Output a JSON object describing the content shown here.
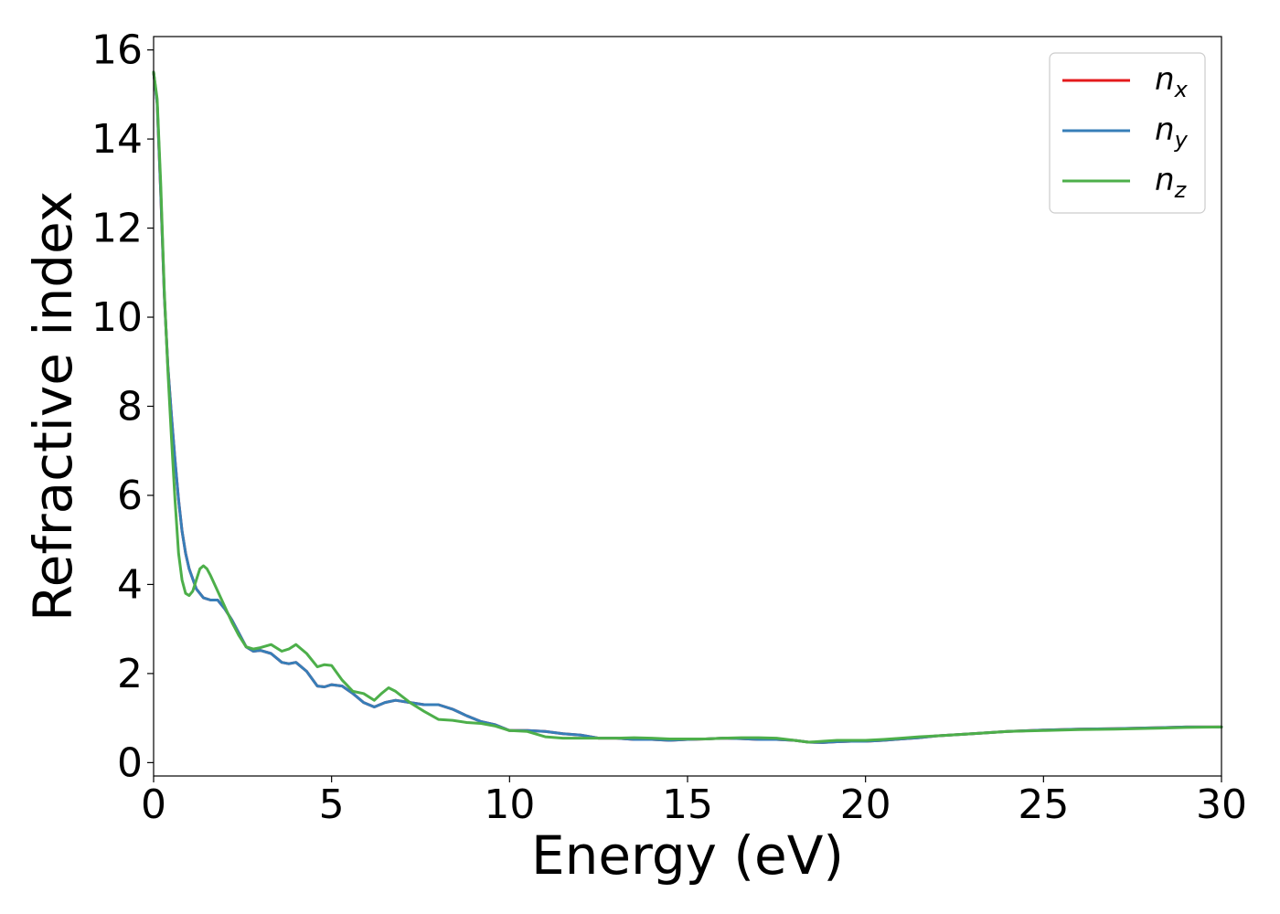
{
  "chart_data": {
    "type": "line",
    "title": "",
    "xlabel": "Energy (eV)",
    "ylabel": "Refractive index",
    "xlim": [
      0,
      30
    ],
    "ylim": [
      -0.3,
      16.3
    ],
    "x_ticks": [
      0,
      5,
      10,
      15,
      20,
      25,
      30
    ],
    "y_ticks": [
      0,
      2,
      4,
      6,
      8,
      10,
      12,
      14,
      16
    ],
    "grid": false,
    "legend": "top-right",
    "series": [
      {
        "name": "n",
        "subscript": "x",
        "color": "#e41a1c",
        "x": [
          0,
          0.1,
          0.2,
          0.3,
          0.4,
          0.5,
          0.6,
          0.7,
          0.8,
          0.9,
          1.0,
          1.2,
          1.4,
          1.6,
          1.8,
          2.0,
          2.2,
          2.4,
          2.6,
          2.8,
          3.0,
          3.3,
          3.6,
          3.8,
          4.0,
          4.3,
          4.6,
          4.8,
          5.0,
          5.3,
          5.6,
          5.9,
          6.2,
          6.5,
          6.8,
          7.2,
          7.6,
          8.0,
          8.4,
          8.8,
          9.2,
          9.6,
          10.0,
          10.5,
          11.0,
          11.5,
          12.0,
          12.5,
          13.0,
          13.5,
          14.0,
          14.5,
          15.0,
          15.5,
          16.0,
          16.5,
          17.0,
          17.5,
          18.0,
          18.4,
          18.8,
          19.2,
          19.6,
          20.0,
          20.5,
          21.0,
          21.5,
          22.0,
          23.0,
          24.0,
          25.0,
          26.0,
          27.0,
          28.0,
          29.0,
          30.0
        ],
        "y": [
          15.5,
          14.8,
          12.8,
          10.5,
          8.9,
          7.8,
          6.8,
          5.9,
          5.2,
          4.7,
          4.35,
          3.9,
          3.7,
          3.65,
          3.65,
          3.45,
          3.2,
          2.9,
          2.6,
          2.5,
          2.52,
          2.45,
          2.25,
          2.22,
          2.25,
          2.05,
          1.72,
          1.7,
          1.75,
          1.72,
          1.55,
          1.35,
          1.25,
          1.35,
          1.4,
          1.35,
          1.3,
          1.3,
          1.2,
          1.05,
          0.92,
          0.85,
          0.72,
          0.72,
          0.7,
          0.65,
          0.62,
          0.55,
          0.55,
          0.52,
          0.52,
          0.5,
          0.52,
          0.53,
          0.55,
          0.54,
          0.52,
          0.52,
          0.5,
          0.46,
          0.45,
          0.47,
          0.48,
          0.48,
          0.5,
          0.53,
          0.56,
          0.6,
          0.65,
          0.7,
          0.73,
          0.75,
          0.76,
          0.78,
          0.8,
          0.8
        ]
      },
      {
        "name": "n",
        "subscript": "y",
        "color": "#377eb8",
        "x": [
          0,
          0.1,
          0.2,
          0.3,
          0.4,
          0.5,
          0.6,
          0.7,
          0.8,
          0.9,
          1.0,
          1.2,
          1.4,
          1.6,
          1.8,
          2.0,
          2.2,
          2.4,
          2.6,
          2.8,
          3.0,
          3.3,
          3.6,
          3.8,
          4.0,
          4.3,
          4.6,
          4.8,
          5.0,
          5.3,
          5.6,
          5.9,
          6.2,
          6.5,
          6.8,
          7.2,
          7.6,
          8.0,
          8.4,
          8.8,
          9.2,
          9.6,
          10.0,
          10.5,
          11.0,
          11.5,
          12.0,
          12.5,
          13.0,
          13.5,
          14.0,
          14.5,
          15.0,
          15.5,
          16.0,
          16.5,
          17.0,
          17.5,
          18.0,
          18.4,
          18.8,
          19.2,
          19.6,
          20.0,
          20.5,
          21.0,
          21.5,
          22.0,
          23.0,
          24.0,
          25.0,
          26.0,
          27.0,
          28.0,
          29.0,
          30.0
        ],
        "y": [
          15.5,
          14.8,
          12.8,
          10.5,
          8.9,
          7.8,
          6.8,
          5.9,
          5.2,
          4.7,
          4.35,
          3.9,
          3.7,
          3.65,
          3.65,
          3.45,
          3.2,
          2.9,
          2.6,
          2.5,
          2.52,
          2.45,
          2.25,
          2.22,
          2.25,
          2.05,
          1.72,
          1.7,
          1.75,
          1.72,
          1.55,
          1.35,
          1.25,
          1.35,
          1.4,
          1.35,
          1.3,
          1.3,
          1.2,
          1.05,
          0.92,
          0.85,
          0.72,
          0.72,
          0.7,
          0.65,
          0.62,
          0.55,
          0.55,
          0.52,
          0.52,
          0.5,
          0.52,
          0.53,
          0.55,
          0.54,
          0.52,
          0.52,
          0.5,
          0.46,
          0.45,
          0.47,
          0.48,
          0.48,
          0.5,
          0.53,
          0.56,
          0.6,
          0.65,
          0.7,
          0.73,
          0.75,
          0.76,
          0.78,
          0.8,
          0.8
        ]
      },
      {
        "name": "n",
        "subscript": "z",
        "color": "#4daf4a",
        "x": [
          0,
          0.1,
          0.2,
          0.3,
          0.4,
          0.5,
          0.6,
          0.7,
          0.8,
          0.9,
          1.0,
          1.1,
          1.2,
          1.3,
          1.4,
          1.5,
          1.6,
          1.8,
          2.0,
          2.2,
          2.4,
          2.6,
          2.8,
          3.0,
          3.3,
          3.6,
          3.8,
          4.0,
          4.3,
          4.6,
          4.8,
          5.0,
          5.3,
          5.6,
          5.9,
          6.2,
          6.4,
          6.6,
          6.8,
          7.2,
          7.6,
          8.0,
          8.4,
          8.8,
          9.2,
          9.6,
          10.0,
          10.5,
          11.0,
          11.5,
          12.0,
          12.5,
          13.0,
          13.5,
          14.0,
          14.5,
          15.0,
          15.5,
          16.0,
          16.5,
          17.0,
          17.5,
          18.0,
          18.4,
          18.8,
          19.2,
          19.6,
          20.0,
          20.5,
          21.0,
          21.5,
          22.0,
          23.0,
          24.0,
          25.0,
          26.0,
          27.0,
          28.0,
          29.0,
          30.0
        ],
        "y": [
          15.5,
          14.9,
          13.0,
          10.6,
          8.8,
          7.3,
          5.9,
          4.7,
          4.1,
          3.8,
          3.75,
          3.85,
          4.1,
          4.35,
          4.42,
          4.35,
          4.2,
          3.85,
          3.5,
          3.15,
          2.85,
          2.6,
          2.55,
          2.58,
          2.65,
          2.5,
          2.55,
          2.65,
          2.45,
          2.15,
          2.2,
          2.18,
          1.85,
          1.6,
          1.55,
          1.4,
          1.55,
          1.68,
          1.6,
          1.35,
          1.15,
          0.97,
          0.95,
          0.9,
          0.88,
          0.82,
          0.72,
          0.7,
          0.58,
          0.55,
          0.55,
          0.55,
          0.55,
          0.56,
          0.55,
          0.53,
          0.53,
          0.53,
          0.55,
          0.56,
          0.56,
          0.55,
          0.5,
          0.46,
          0.48,
          0.5,
          0.5,
          0.5,
          0.52,
          0.55,
          0.58,
          0.6,
          0.65,
          0.7,
          0.72,
          0.74,
          0.75,
          0.77,
          0.79,
          0.8
        ]
      }
    ]
  }
}
